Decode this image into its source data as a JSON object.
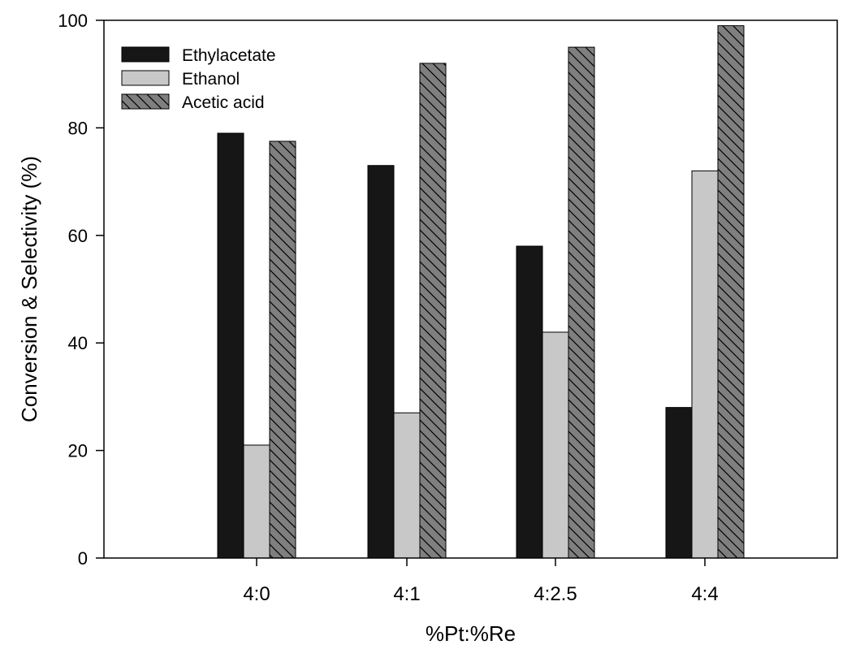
{
  "chart_data": {
    "type": "bar",
    "categories": [
      "4:0",
      "4:1",
      "4:2.5",
      "4:4"
    ],
    "series": [
      {
        "name": "Ethylacetate",
        "values": [
          79,
          73,
          58,
          28
        ],
        "color": "#161616",
        "pattern": "solid"
      },
      {
        "name": "Ethanol",
        "values": [
          21,
          27,
          42,
          72
        ],
        "color": "#c8c8c8",
        "pattern": "solid"
      },
      {
        "name": "Acetic acid",
        "values": [
          77.5,
          92,
          95,
          99
        ],
        "color": "#7f7f7f",
        "pattern": "diagonal-hatch"
      }
    ],
    "xlabel": "%Pt:%Re",
    "ylabel": "Conversion & Selectivity (%)",
    "ylim": [
      0,
      100
    ],
    "yticks": [
      0,
      20,
      40,
      60,
      80,
      100
    ],
    "grid": false,
    "legend_position": "top-left"
  }
}
